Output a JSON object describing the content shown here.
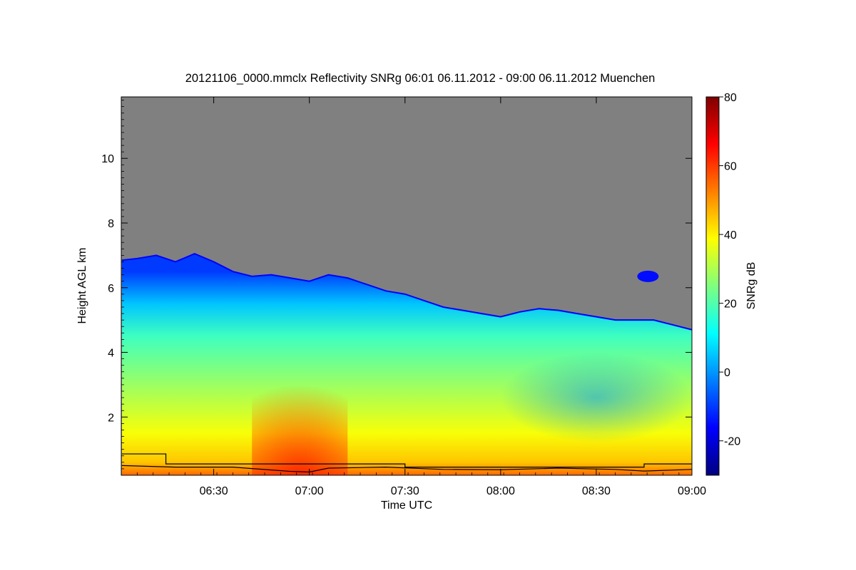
{
  "chart_data": {
    "type": "heatmap",
    "title": "20121106_0000.mmclx Reflectivity SNRg   06:01 06.11.2012 - 09:00 06.11.2012 Muenchen",
    "xlabel": "Time UTC",
    "ylabel": "Height AGL km",
    "colorbar_label": "SNRg dB",
    "x_range_hours": [
      6.0167,
      9.0
    ],
    "y_range_km": [
      0.2,
      11.9
    ],
    "x_ticks": [
      {
        "value": 6.5,
        "label": "06:30"
      },
      {
        "value": 7.0,
        "label": "07:00"
      },
      {
        "value": 7.5,
        "label": "07:30"
      },
      {
        "value": 8.0,
        "label": "08:00"
      },
      {
        "value": 8.5,
        "label": "08:30"
      },
      {
        "value": 9.0,
        "label": "09:00"
      }
    ],
    "y_ticks": [
      {
        "value": 2,
        "label": "2"
      },
      {
        "value": 4,
        "label": "4"
      },
      {
        "value": 6,
        "label": "6"
      },
      {
        "value": 8,
        "label": "8"
      },
      {
        "value": 10,
        "label": "10"
      }
    ],
    "colorbar_range_db": [
      -30,
      80
    ],
    "colorbar_ticks": [
      {
        "value": -20,
        "label": "-20"
      },
      {
        "value": 0,
        "label": "0"
      },
      {
        "value": 20,
        "label": "20"
      },
      {
        "value": 40,
        "label": "40"
      },
      {
        "value": 60,
        "label": "60"
      },
      {
        "value": 80,
        "label": "80"
      }
    ],
    "colormap": [
      "#00007f",
      "#0000ff",
      "#007fff",
      "#00ffff",
      "#7fff7f",
      "#ffff00",
      "#ff7f00",
      "#ff0000",
      "#7f0000"
    ],
    "no_signal_color": "#808080",
    "cloud_top_km": [
      [
        6.02,
        6.85
      ],
      [
        6.1,
        6.9
      ],
      [
        6.2,
        7.0
      ],
      [
        6.3,
        6.8
      ],
      [
        6.4,
        7.05
      ],
      [
        6.5,
        6.8
      ],
      [
        6.6,
        6.5
      ],
      [
        6.7,
        6.35
      ],
      [
        6.8,
        6.4
      ],
      [
        6.9,
        6.3
      ],
      [
        7.0,
        6.2
      ],
      [
        7.1,
        6.4
      ],
      [
        7.2,
        6.3
      ],
      [
        7.3,
        6.1
      ],
      [
        7.4,
        5.9
      ],
      [
        7.5,
        5.8
      ],
      [
        7.6,
        5.6
      ],
      [
        7.7,
        5.4
      ],
      [
        7.8,
        5.3
      ],
      [
        7.9,
        5.2
      ],
      [
        8.0,
        5.1
      ],
      [
        8.1,
        5.25
      ],
      [
        8.2,
        5.35
      ],
      [
        8.3,
        5.3
      ],
      [
        8.4,
        5.2
      ],
      [
        8.5,
        5.1
      ],
      [
        8.6,
        5.0
      ],
      [
        8.7,
        5.0
      ],
      [
        8.8,
        5.0
      ],
      [
        8.9,
        4.85
      ],
      [
        9.0,
        4.7
      ]
    ],
    "isolated_echo": {
      "x": 8.77,
      "y": 6.35
    },
    "reflectivity_profile": [
      [
        0.2,
        55
      ],
      [
        0.6,
        45
      ],
      [
        1.5,
        38
      ],
      [
        3.0,
        28
      ],
      [
        4.5,
        18
      ],
      [
        5.5,
        5
      ],
      [
        6.5,
        -10
      ]
    ],
    "reflectivity_enhancement": {
      "center_x": 6.95,
      "top_km": 3.0,
      "peak_db": 62
    },
    "weak_echo_region": {
      "x": [
        8.0,
        9.0
      ],
      "y": [
        1.2,
        4.0
      ]
    },
    "line_series": [
      {
        "points": [
          [
            6.02,
            0.86
          ],
          [
            6.25,
            0.86
          ],
          [
            6.25,
            0.55
          ],
          [
            7.5,
            0.55
          ],
          [
            7.5,
            0.45
          ],
          [
            8.75,
            0.45
          ],
          [
            8.75,
            0.55
          ],
          [
            9.0,
            0.55
          ]
        ]
      },
      {
        "points": [
          [
            6.02,
            0.5
          ],
          [
            6.3,
            0.45
          ],
          [
            6.6,
            0.45
          ],
          [
            6.9,
            0.32
          ],
          [
            7.0,
            0.3
          ],
          [
            7.1,
            0.42
          ],
          [
            7.4,
            0.45
          ],
          [
            7.7,
            0.38
          ],
          [
            8.0,
            0.37
          ],
          [
            8.3,
            0.42
          ],
          [
            8.6,
            0.38
          ],
          [
            8.75,
            0.33
          ],
          [
            9.0,
            0.38
          ]
        ]
      }
    ]
  }
}
